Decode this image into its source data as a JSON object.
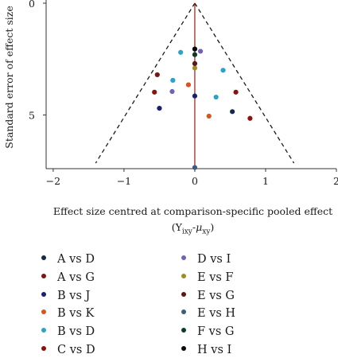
{
  "chart_data": {
    "type": "scatter",
    "subtype": "comparison-adjusted funnel plot",
    "xlabel": "Effect size centred at comparison-specific pooled effect",
    "xlabel_formula": {
      "base1": "(Y",
      "sub1": "ixy",
      "mid": "-",
      "mu": "μ",
      "sub2": "xy",
      "end": ")"
    },
    "ylabel": "Standard error of effect size",
    "xlim": [
      -2.1,
      2.0
    ],
    "ylim": [
      0,
      7.4
    ],
    "y_reversed": true,
    "x_ticks": [
      "−2",
      "−1",
      "0",
      "1",
      "2"
    ],
    "x_tick_values": [
      -2,
      -1,
      0,
      1,
      2
    ],
    "y_ticks": [
      "0",
      "5"
    ],
    "y_tick_values": [
      0,
      5
    ],
    "funnel": {
      "apex": [
        0,
        0
      ],
      "left_bottom": [
        -1.4,
        7.15
      ],
      "right_bottom": [
        1.4,
        7.15
      ],
      "style": "dashed"
    },
    "reference_line": {
      "x": 0,
      "color": "#a01818"
    },
    "series": [
      {
        "name": "A vs D",
        "color": "#13294b",
        "points": [
          [
            0.53,
            4.85
          ]
        ]
      },
      {
        "name": "A vs G",
        "color": "#7b1616",
        "points": [
          [
            -0.53,
            3.2
          ]
        ]
      },
      {
        "name": "B vs J",
        "color": "#1a1f6e",
        "points": [
          [
            -0.5,
            4.7
          ],
          [
            0.0,
            4.15
          ]
        ]
      },
      {
        "name": "B vs K",
        "color": "#d4561e",
        "points": [
          [
            -0.09,
            3.65
          ],
          [
            0.2,
            5.05
          ]
        ]
      },
      {
        "name": "B vs D",
        "color": "#2ba3c6",
        "points": [
          [
            -0.2,
            2.2
          ],
          [
            -0.31,
            3.45
          ],
          [
            0.3,
            4.2
          ],
          [
            0.4,
            3.0
          ]
        ]
      },
      {
        "name": "C vs D",
        "color": "#8f1010",
        "points": [
          [
            -0.57,
            3.98
          ],
          [
            0.58,
            3.98
          ],
          [
            0.78,
            5.15
          ]
        ]
      },
      {
        "name": "D vs I",
        "color": "#7162b5",
        "points": [
          [
            0.08,
            2.15
          ],
          [
            -0.32,
            3.95
          ]
        ]
      },
      {
        "name": "E vs F",
        "color": "#a38a2a",
        "points": [
          [
            0.0,
            2.9
          ]
        ]
      },
      {
        "name": "E vs G",
        "color": "#5a1a12",
        "points": [
          [
            0.0,
            2.7
          ]
        ]
      },
      {
        "name": "E vs H",
        "color": "#3d5c7a",
        "points": [
          [
            0.0,
            7.35
          ]
        ]
      },
      {
        "name": "F vs G",
        "color": "#0e3a2a",
        "points": [
          [
            0.0,
            2.3
          ]
        ]
      },
      {
        "name": "H vs I",
        "color": "#0a0a0a",
        "points": [
          [
            0.0,
            2.05
          ]
        ]
      }
    ],
    "legend": {
      "placement": "bottom",
      "columns": 2
    }
  }
}
